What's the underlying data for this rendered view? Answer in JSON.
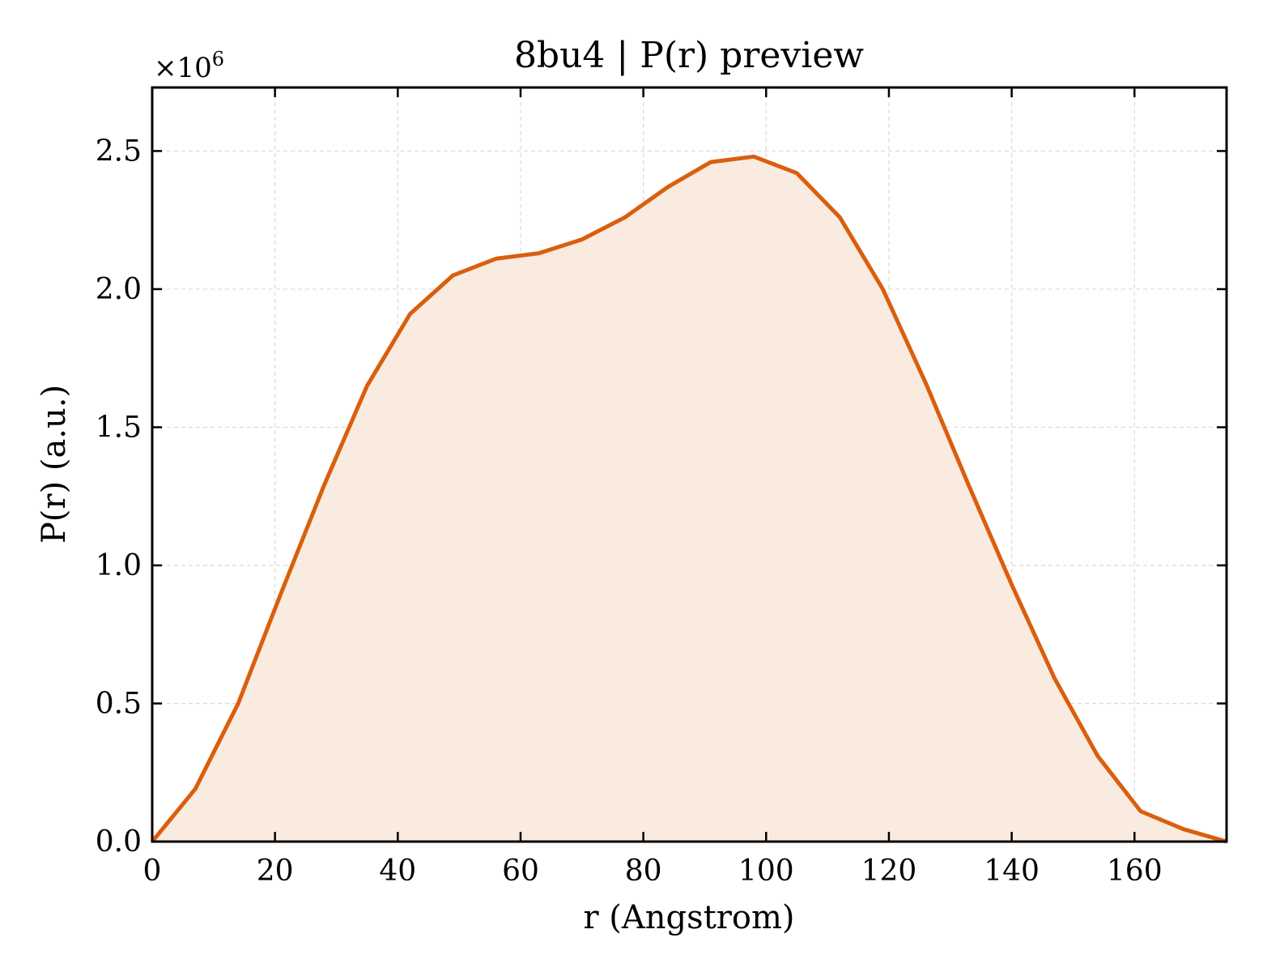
{
  "chart_data": {
    "type": "area",
    "title": "8bu4 | P(r) preview",
    "xlabel": "r (Angstrom)",
    "ylabel": "P(r) (a.u.)",
    "y_multiplier_label": "×10",
    "y_multiplier_exponent": "6",
    "xlim": [
      0,
      175
    ],
    "ylim": [
      0,
      2.73
    ],
    "x_ticks": [
      0,
      20,
      40,
      60,
      80,
      100,
      120,
      140,
      160
    ],
    "x_tick_labels": [
      "0",
      "20",
      "40",
      "60",
      "80",
      "100",
      "120",
      "140",
      "160"
    ],
    "y_ticks": [
      0,
      0.5,
      1.0,
      1.5,
      2.0,
      2.5
    ],
    "y_tick_labels": [
      "0.0",
      "0.5",
      "1.0",
      "1.5",
      "2.0",
      "2.5"
    ],
    "grid": true,
    "series": [
      {
        "x": [
          0,
          7,
          14,
          21,
          28,
          35,
          42,
          49,
          56,
          63,
          70,
          77,
          84,
          91,
          98,
          105,
          112,
          119,
          126,
          133,
          140,
          147,
          154,
          161,
          168,
          175
        ],
        "y": [
          0.0,
          0.19,
          0.5,
          0.9,
          1.29,
          1.65,
          1.91,
          2.05,
          2.11,
          2.13,
          2.18,
          2.26,
          2.37,
          2.46,
          2.48,
          2.42,
          2.26,
          2.0,
          1.66,
          1.29,
          0.93,
          0.59,
          0.31,
          0.11,
          0.045,
          0.0
        ]
      }
    ],
    "colors": {
      "line": "#d95f0e",
      "fill": "#f9ebe0",
      "grid": "#d9d9d9",
      "axis": "#000000"
    }
  }
}
